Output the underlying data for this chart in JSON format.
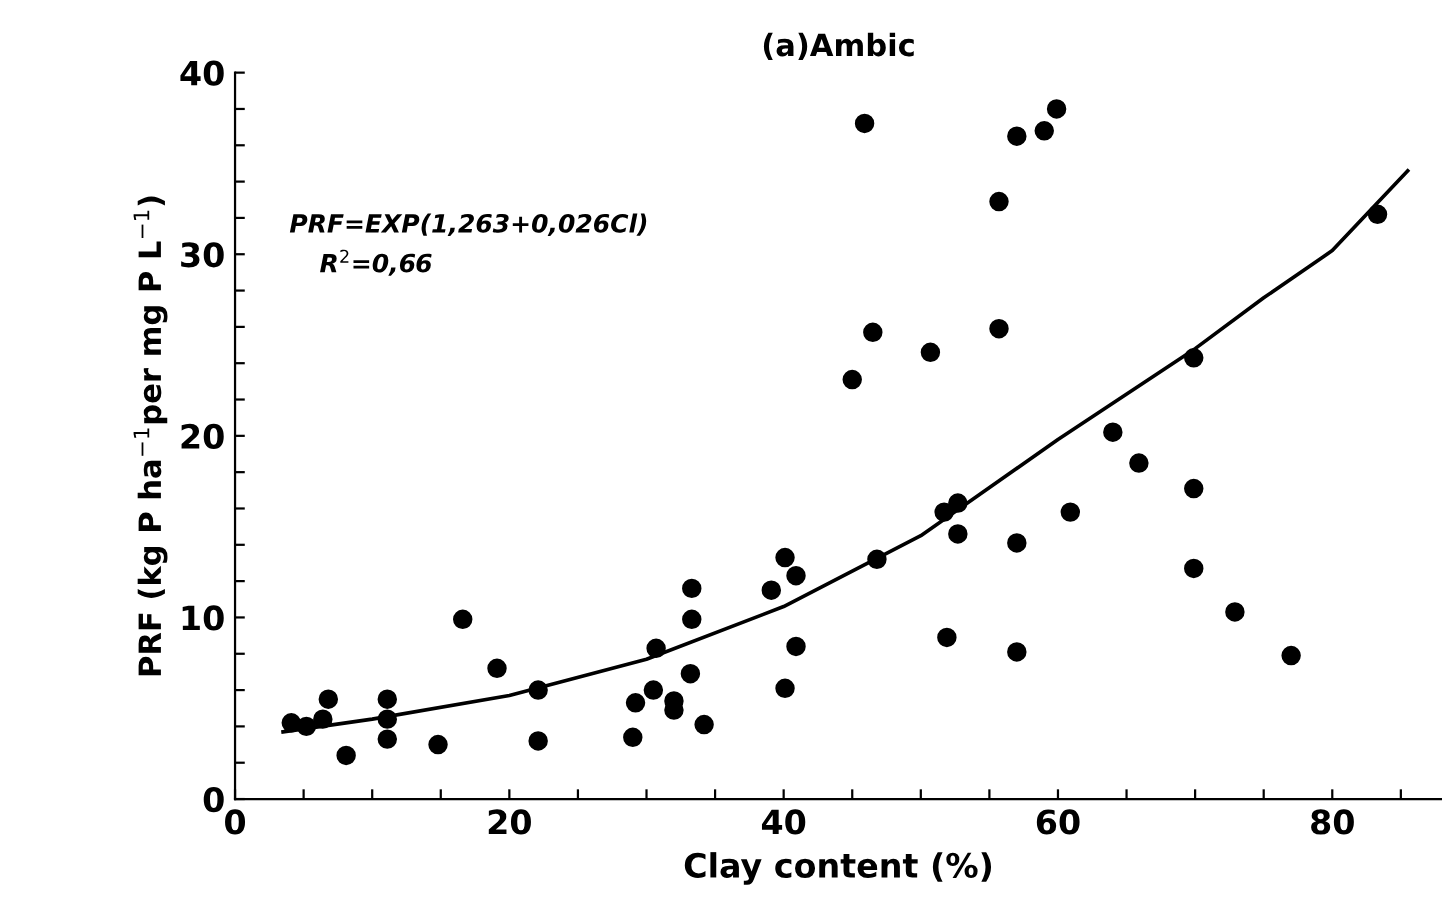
{
  "chart_data": {
    "type": "scatter",
    "title": "(a)Ambic",
    "xlabel": "Clay content (%)",
    "ylabel": "PRF (kg P ha$^{−1}$per mg P L$^{−1}$)",
    "annotations": [
      "PRF=EXP(1,263+0,026Cl)",
      "R$^{2}$=0,66"
    ],
    "series": [
      {
        "color": "#000000",
        "marker": "circle",
        "x": [
          4.1,
          5.2,
          6.4,
          6.8,
          8.1,
          11.1,
          11.1,
          11.1,
          14.8,
          16.6,
          19.1,
          22.1,
          22.1,
          29.0,
          29.2,
          30.5,
          30.7,
          32.0,
          32.0,
          33.2,
          33.3,
          33.3,
          34.2,
          39.1,
          40.1,
          40.1,
          40.9,
          40.9,
          45.0,
          45.9,
          46.5,
          46.8,
          50.7,
          51.7,
          51.9,
          52.7,
          52.7,
          55.7,
          55.7,
          57.0,
          57.0,
          57.0,
          59.0,
          59.9,
          60.9,
          64.0,
          65.9,
          69.9,
          69.9,
          69.9,
          72.9,
          77.0,
          83.3
        ],
        "values": [
          4.2,
          4.0,
          4.4,
          5.5,
          2.4,
          5.5,
          4.4,
          3.3,
          3.0,
          9.9,
          7.2,
          6.0,
          3.2,
          3.4,
          5.3,
          6.0,
          8.3,
          5.4,
          4.9,
          6.9,
          9.9,
          11.6,
          4.1,
          11.5,
          13.3,
          6.1,
          8.4,
          12.3,
          23.1,
          37.2,
          25.7,
          13.2,
          24.6,
          15.8,
          8.9,
          16.3,
          14.6,
          32.9,
          25.9,
          36.5,
          14.1,
          8.1,
          36.8,
          38.0,
          15.8,
          20.2,
          18.5,
          24.3,
          17.1,
          12.7,
          10.3,
          7.9,
          32.2
        ]
      },
      {
        "type": "line",
        "color": "#000000",
        "line_style": "solid",
        "x": [
          3.5,
          10,
          20,
          30,
          40,
          50,
          60,
          70,
          75,
          80,
          85.5
        ],
        "values": [
          3.7,
          4.4,
          5.7,
          7.7,
          10.6,
          14.5,
          19.8,
          24.8,
          27.6,
          30.2,
          34.6
        ]
      }
    ],
    "xlim": [
      0,
      88
    ],
    "ylim": [
      0,
      40
    ],
    "xticks": [
      0,
      {
        "value": 5,
        "label": null
      },
      {
        "value": 10,
        "label": null
      },
      {
        "value": 15,
        "label": null
      },
      20,
      {
        "value": 25,
        "label": null
      },
      {
        "value": 30,
        "label": null
      },
      {
        "value": 35,
        "label": null
      },
      40,
      {
        "value": 45,
        "label": null
      },
      {
        "value": 50,
        "label": null
      },
      {
        "value": 55,
        "label": null
      },
      60,
      {
        "value": 65,
        "label": null
      },
      {
        "value": 70,
        "label": null
      },
      {
        "value": 75,
        "label": null
      },
      80,
      {
        "value": 85,
        "label": null
      }
    ],
    "yticks": [
      0,
      {
        "value": 2,
        "label": null
      },
      {
        "value": 4,
        "label": null
      },
      {
        "value": 6,
        "label": null
      },
      {
        "value": 8,
        "label": null
      },
      10,
      {
        "value": 12,
        "label": null
      },
      {
        "value": 14,
        "label": null
      },
      {
        "value": 16,
        "label": null
      },
      {
        "value": 18,
        "label": null
      },
      20,
      {
        "value": 22,
        "label": null
      },
      {
        "value": 24,
        "label": null
      },
      {
        "value": 26,
        "label": null
      },
      {
        "value": 28,
        "label": null
      },
      30,
      {
        "value": 32,
        "label": null
      },
      {
        "value": 34,
        "label": null
      },
      {
        "value": 36,
        "label": null
      },
      {
        "value": 38,
        "label": null
      },
      40
    ],
    "grid": false,
    "legend": false
  }
}
